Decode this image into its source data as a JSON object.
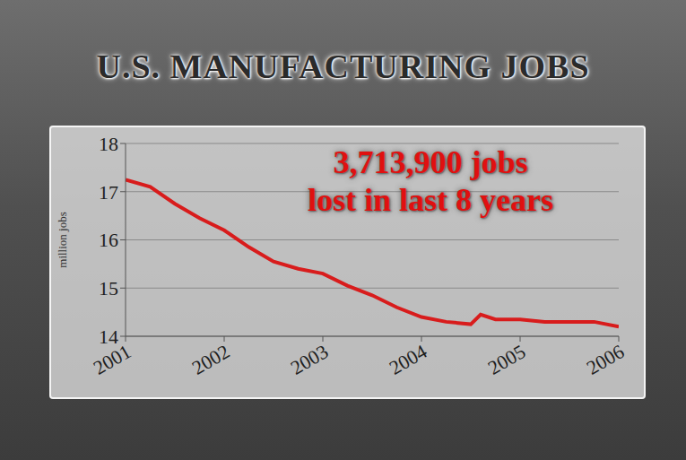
{
  "chart_data": {
    "type": "line",
    "title": "U.S. MANUFACTURING JOBS",
    "y_label": "million jobs",
    "annotation": [
      "3,713,900 jobs",
      "lost in last 8 years"
    ],
    "x": [
      2001.0,
      2001.25,
      2001.5,
      2001.75,
      2002.0,
      2002.25,
      2002.5,
      2002.75,
      2003.0,
      2003.25,
      2003.5,
      2003.75,
      2004.0,
      2004.25,
      2004.5,
      2004.6,
      2004.75,
      2005.0,
      2005.25,
      2005.5,
      2005.75,
      2006.0
    ],
    "values": [
      17.25,
      17.1,
      16.75,
      16.45,
      16.2,
      15.85,
      15.55,
      15.4,
      15.3,
      15.05,
      14.85,
      14.6,
      14.4,
      14.3,
      14.25,
      14.45,
      14.35,
      14.35,
      14.3,
      14.3,
      14.3,
      14.2
    ],
    "color": "#d81c1c",
    "xlim": [
      2001,
      2006
    ],
    "xticks": [
      2001,
      2002,
      2003,
      2004,
      2005,
      2006
    ],
    "ylim": [
      14,
      18
    ],
    "yticks": [
      14,
      15,
      16,
      17,
      18
    ],
    "grid": true
  }
}
